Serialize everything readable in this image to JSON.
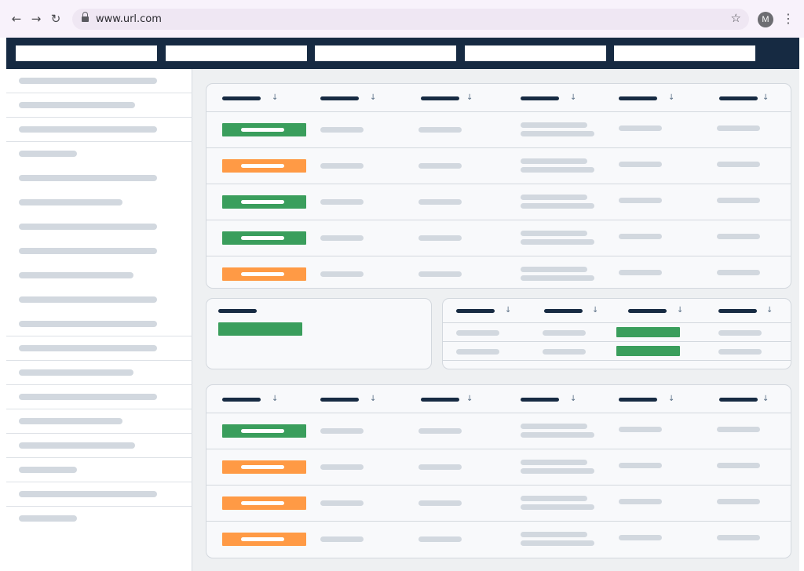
{
  "browser": {
    "url": "www.url.com",
    "avatar_letter": "M",
    "back_icon": "arrow-left-icon",
    "forward_icon": "arrow-right-icon",
    "reload_icon": "reload-icon"
  },
  "colors": {
    "header_navy": "#162a42",
    "status_green": "#3a9e5c",
    "status_orange": "#ff9a45",
    "placeholder_gray": "#d2d8df"
  },
  "top_nav": {
    "tab_count": 5
  },
  "sidebar": {
    "item_count": 19
  },
  "table_top": {
    "columns": 6,
    "rows": [
      {
        "status": "green"
      },
      {
        "status": "orange"
      },
      {
        "status": "green"
      },
      {
        "status": "green"
      },
      {
        "status": "orange"
      }
    ]
  },
  "summary_card": {
    "status": "green"
  },
  "table_small": {
    "columns": 4,
    "rows": [
      {
        "status": "green"
      },
      {
        "status": "green"
      }
    ]
  },
  "table_bottom": {
    "columns": 6,
    "rows": [
      {
        "status": "green"
      },
      {
        "status": "orange"
      },
      {
        "status": "orange"
      },
      {
        "status": "orange"
      }
    ]
  }
}
